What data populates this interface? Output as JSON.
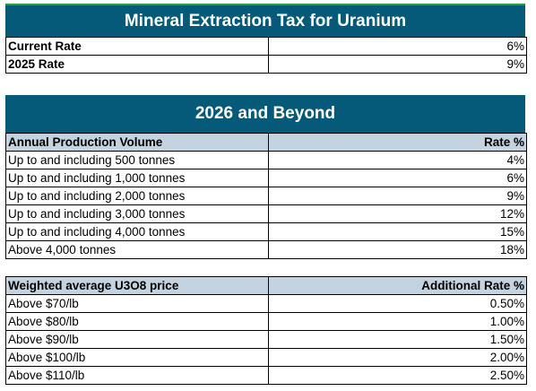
{
  "colors": {
    "title_bg": "#045a78",
    "header_row_bg": "#c3d3df",
    "top_accent": "#23a33a"
  },
  "section1": {
    "title": "Mineral Extraction Tax for Uranium",
    "rows": [
      {
        "label": "Current Rate",
        "value": "6%"
      },
      {
        "label": "2025 Rate",
        "value": "9%"
      }
    ]
  },
  "section2": {
    "title": "2026 and Beyond",
    "header": {
      "col1": "Annual Production Volume",
      "col2": "Rate %"
    },
    "rows": [
      {
        "label": "Up to and including 500 tonnes",
        "value": "4%"
      },
      {
        "label": "Up to and including 1,000 tonnes",
        "value": "6%"
      },
      {
        "label": "Up to and including 2,000 tonnes",
        "value": "9%"
      },
      {
        "label": "Up to and including 3,000 tonnes",
        "value": "12%"
      },
      {
        "label": "Up to and including 4,000 tonnes",
        "value": "15%"
      },
      {
        "label": "Above 4,000 tonnes",
        "value": "18%"
      }
    ]
  },
  "section3": {
    "header": {
      "col1": "Weighted average U3O8 price",
      "col2": "Additional Rate %"
    },
    "rows": [
      {
        "label": "Above $70/lb",
        "value": "0.50%"
      },
      {
        "label": "Above $80/lb",
        "value": "1.00%"
      },
      {
        "label": "Above $90/lb",
        "value": "1.50%"
      },
      {
        "label": "Above $100/lb",
        "value": "2.00%"
      },
      {
        "label": "Above $110/lb",
        "value": "2.50%"
      }
    ]
  }
}
